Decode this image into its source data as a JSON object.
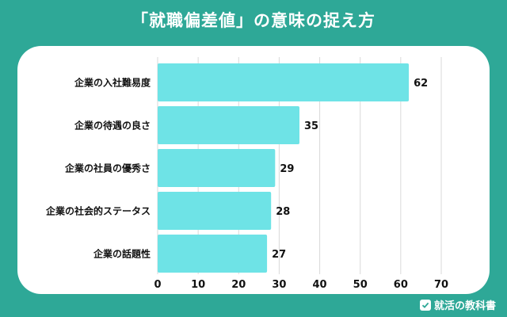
{
  "title": "「就職偏差値」の意味の捉え方",
  "brand": {
    "name": "就活の教科書",
    "icon": "book-check-icon"
  },
  "colors": {
    "background": "#2ea897",
    "bar": "#6ee3e6",
    "grid": "#d9d9d9",
    "text": "#111111"
  },
  "chart_data": {
    "type": "bar",
    "orientation": "horizontal",
    "title": "「就職偏差値」の意味の捉え方",
    "categories": [
      "企業の入社難易度",
      "企業の待遇の良さ",
      "企業の社員の優秀さ",
      "企業の社会的ステータス",
      "企業の話題性"
    ],
    "values": [
      62,
      35,
      29,
      28,
      27
    ],
    "xlim": [
      0,
      70
    ],
    "xticks": [
      0,
      10,
      20,
      30,
      40,
      50,
      60,
      70
    ],
    "grid": true,
    "legend": "none",
    "data_labels": true
  }
}
